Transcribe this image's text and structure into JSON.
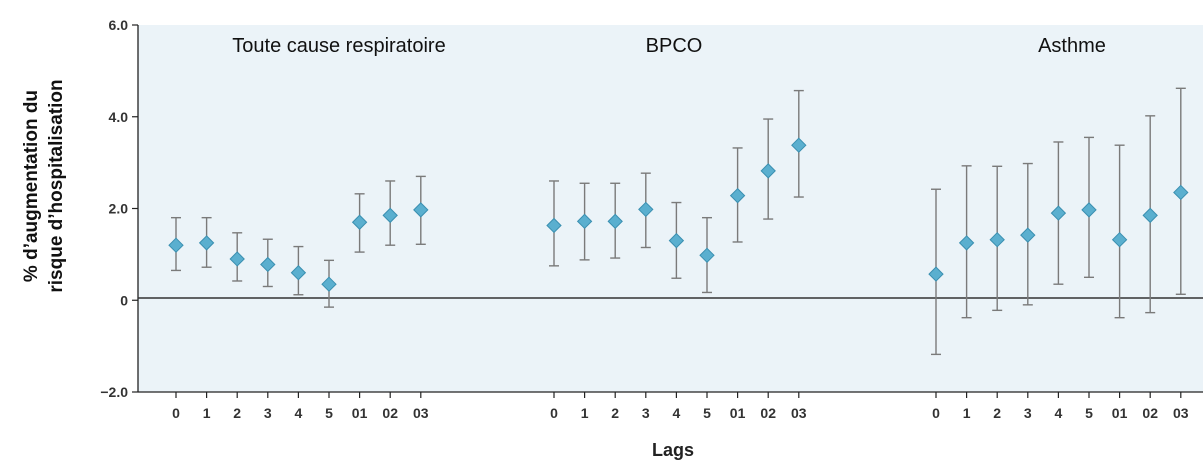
{
  "chart_data": {
    "type": "scatter",
    "subtype": "forest-plot-with-error-bars",
    "ylabel_lines": [
      "% d’augmentation du",
      "risque d’hospitalisation"
    ],
    "xlabel": "Lags",
    "ylim": [
      -2.0,
      6.0
    ],
    "yticks": [
      "6.0",
      "4.0",
      "2.0",
      "0",
      "−2.0"
    ],
    "ytick_values": [
      6.0,
      4.0,
      2.0,
      0,
      -2.0
    ],
    "reference_line": 0,
    "grid": false,
    "colors": {
      "background": "#ebf3f8",
      "marker": "#5aafcf",
      "marker_edge": "#3a8fb0",
      "error_bar": "#7a7a7a",
      "axis": "#222222"
    },
    "groups": [
      {
        "title": "Toute cause respiratoire",
        "categories": [
          "0",
          "1",
          "2",
          "3",
          "4",
          "5",
          "01",
          "02",
          "03"
        ],
        "values": [
          1.2,
          1.25,
          0.9,
          0.78,
          0.6,
          0.35,
          1.7,
          1.85,
          1.97
        ],
        "lower": [
          0.65,
          0.72,
          0.42,
          0.3,
          0.12,
          -0.15,
          1.05,
          1.2,
          1.22
        ],
        "upper": [
          1.8,
          1.8,
          1.47,
          1.33,
          1.17,
          0.87,
          2.32,
          2.6,
          2.7
        ]
      },
      {
        "title": "BPCO",
        "categories": [
          "0",
          "1",
          "2",
          "3",
          "4",
          "5",
          "01",
          "02",
          "03"
        ],
        "values": [
          1.63,
          1.72,
          1.72,
          1.98,
          1.3,
          0.98,
          2.28,
          2.82,
          3.38
        ],
        "lower": [
          0.75,
          0.88,
          0.92,
          1.15,
          0.48,
          0.17,
          1.27,
          1.77,
          2.25
        ],
        "upper": [
          2.6,
          2.55,
          2.55,
          2.77,
          2.13,
          1.8,
          3.32,
          3.95,
          4.57
        ]
      },
      {
        "title": "Asthme",
        "categories": [
          "0",
          "1",
          "2",
          "3",
          "4",
          "5",
          "01",
          "02",
          "03"
        ],
        "values": [
          0.57,
          1.25,
          1.32,
          1.42,
          1.9,
          1.97,
          1.32,
          1.85,
          2.35
        ],
        "lower": [
          -1.18,
          -0.38,
          -0.22,
          -0.1,
          0.35,
          0.5,
          -0.38,
          -0.27,
          0.13
        ],
        "upper": [
          2.42,
          2.93,
          2.92,
          2.98,
          3.45,
          3.55,
          3.38,
          4.02,
          4.62
        ]
      }
    ]
  }
}
